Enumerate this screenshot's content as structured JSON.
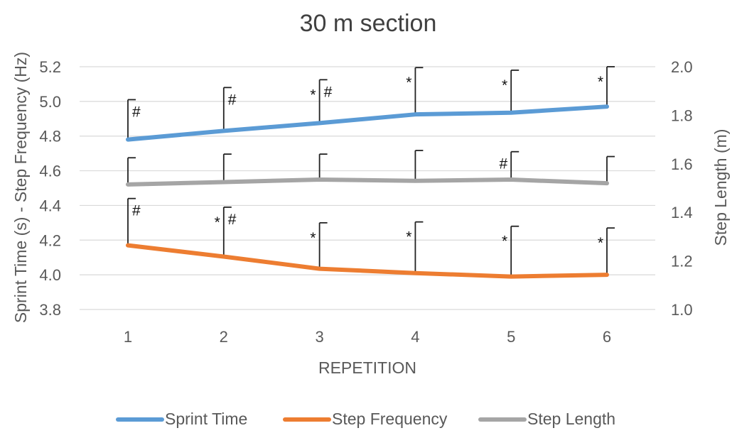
{
  "chart_data": {
    "type": "line",
    "title": "30 m section",
    "xlabel": "REPETITION",
    "ylabel": "Sprint Time (s) - Step Frequency (Hz)",
    "y2label": "Step Length (m)",
    "categories": [
      "1",
      "2",
      "3",
      "4",
      "5",
      "6"
    ],
    "ylim": [
      3.8,
      5.2
    ],
    "y2lim": [
      1.0,
      2.0
    ],
    "yticks": [
      "3.8",
      "4.0",
      "4.2",
      "4.4",
      "4.6",
      "4.8",
      "5.0",
      "5.2"
    ],
    "y2ticks": [
      "1.0",
      "1.2",
      "1.4",
      "1.6",
      "1.8",
      "2.0"
    ],
    "grid": true,
    "legend_position": "bottom",
    "series": [
      {
        "name": "Sprint Time",
        "axis": "left",
        "color": "#5B9BD5",
        "values": [
          4.78,
          4.83,
          4.875,
          4.925,
          4.935,
          4.97
        ],
        "error_upper": [
          5.01,
          5.08,
          5.125,
          5.195,
          5.18,
          5.2
        ],
        "markers": [
          {
            "x_index": 0,
            "right": "#"
          },
          {
            "x_index": 1,
            "right": "#"
          },
          {
            "x_index": 2,
            "left": "*",
            "right": "#"
          },
          {
            "x_index": 3,
            "left": "*"
          },
          {
            "x_index": 4,
            "left": "*"
          },
          {
            "x_index": 5,
            "left": "*"
          }
        ]
      },
      {
        "name": "Step Frequency",
        "axis": "left",
        "color": "#ED7D31",
        "values": [
          4.17,
          4.105,
          4.035,
          4.01,
          3.99,
          4.0
        ],
        "error_upper": [
          4.44,
          4.39,
          4.3,
          4.305,
          4.28,
          4.27
        ],
        "markers": [
          {
            "x_index": 0,
            "right": "#"
          },
          {
            "x_index": 1,
            "left": "*",
            "right": "#"
          },
          {
            "x_index": 2,
            "left": "*"
          },
          {
            "x_index": 3,
            "left": "*"
          },
          {
            "x_index": 4,
            "left": "*"
          },
          {
            "x_index": 5,
            "left": "*"
          }
        ]
      },
      {
        "name": "Step Length",
        "axis": "right",
        "color": "#A5A5A5",
        "values": [
          1.515,
          1.525,
          1.535,
          1.53,
          1.535,
          1.52
        ],
        "error_upper": [
          1.625,
          1.64,
          1.64,
          1.655,
          1.65,
          1.63
        ],
        "markers": [
          {
            "x_index": 4,
            "left": "#"
          }
        ]
      }
    ]
  }
}
